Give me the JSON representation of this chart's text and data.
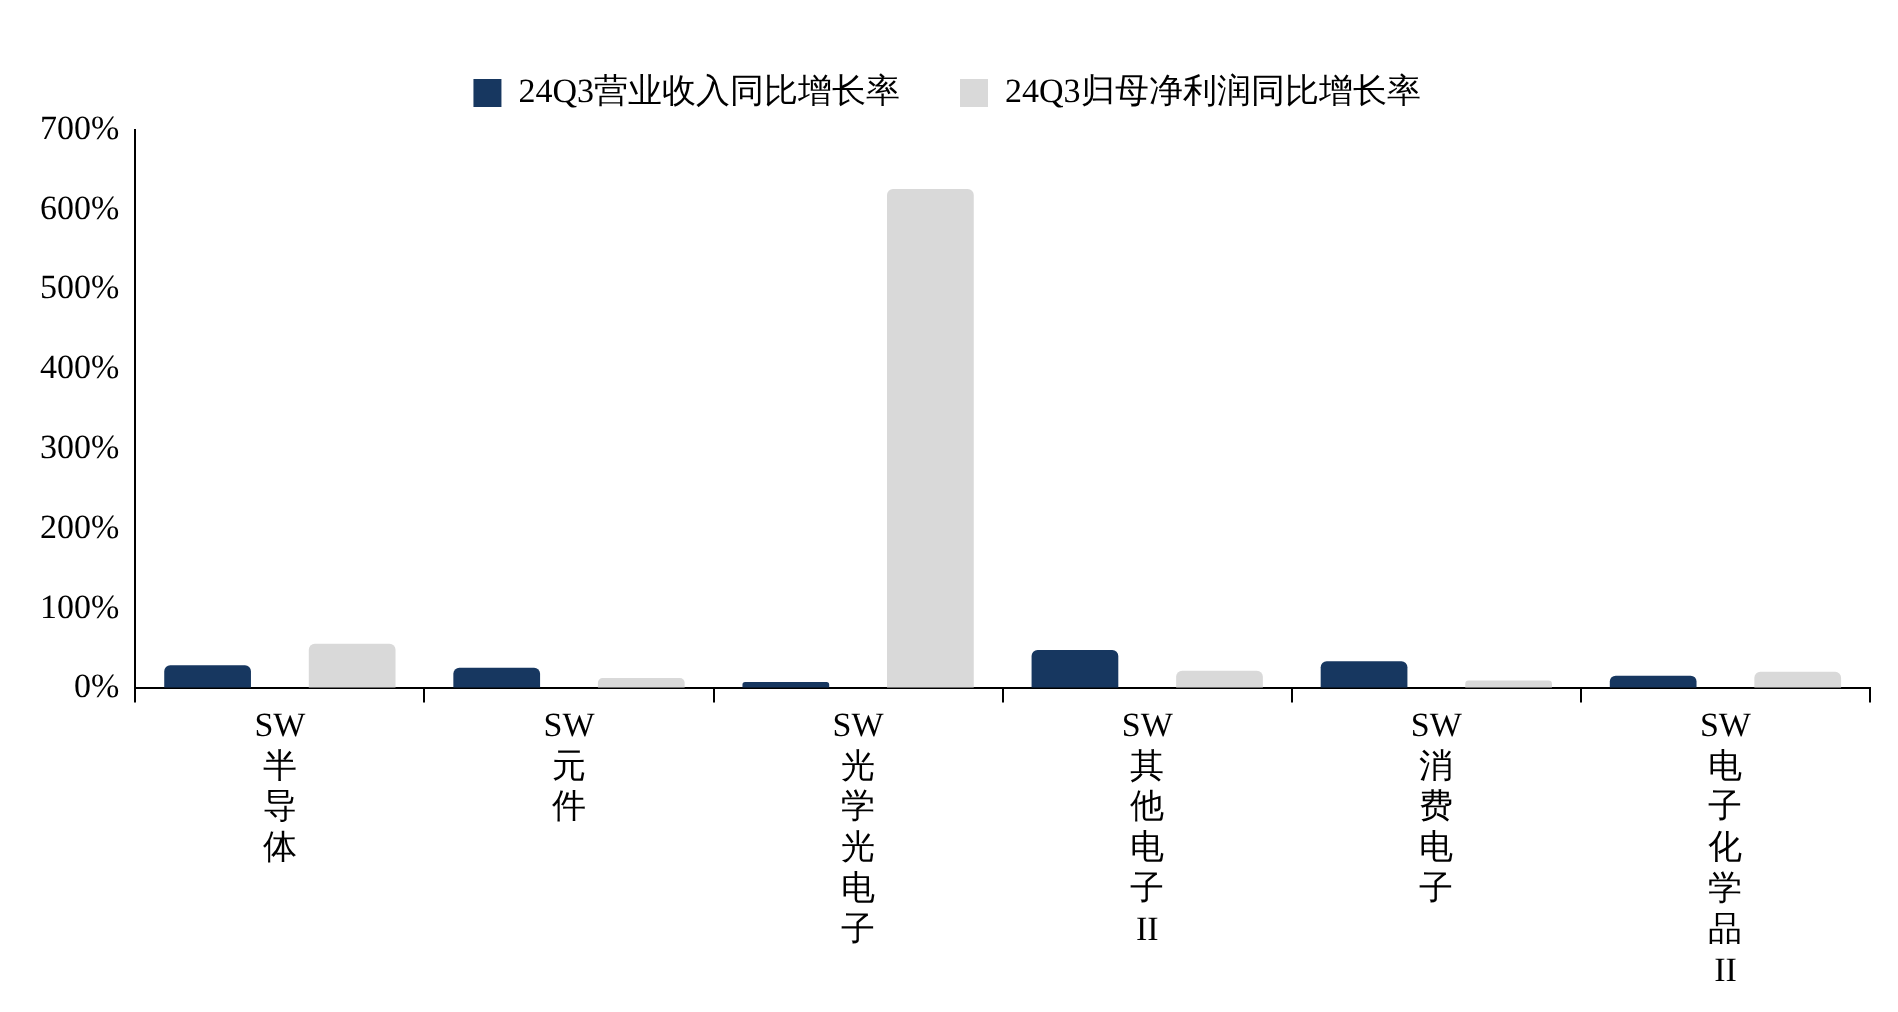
{
  "chart_data": {
    "type": "bar",
    "categories": [
      "SW半导体",
      "SW元件",
      "SW光学光电子",
      "SW其他电子II",
      "SW消费电子",
      "SW电子化学品II"
    ],
    "series": [
      {
        "name": "24Q3营业收入同比增长率",
        "color": "#173760",
        "values": [
          29,
          26,
          8,
          48,
          34,
          16
        ]
      },
      {
        "name": "24Q3归母净利润同比增长率",
        "color": "#d9d9d9",
        "values": [
          56,
          13,
          626,
          22,
          10,
          21
        ]
      }
    ],
    "ylim": [
      0,
      700
    ],
    "yticks": [
      {
        "value": 0,
        "label": "0%"
      },
      {
        "value": 100,
        "label": "100%"
      },
      {
        "value": 200,
        "label": "200%"
      },
      {
        "value": 300,
        "label": "300%"
      },
      {
        "value": 400,
        "label": "400%"
      },
      {
        "value": 500,
        "label": "500%"
      },
      {
        "value": 600,
        "label": "600%"
      },
      {
        "value": 700,
        "label": "700%"
      }
    ],
    "grid": false,
    "legend": "top"
  }
}
